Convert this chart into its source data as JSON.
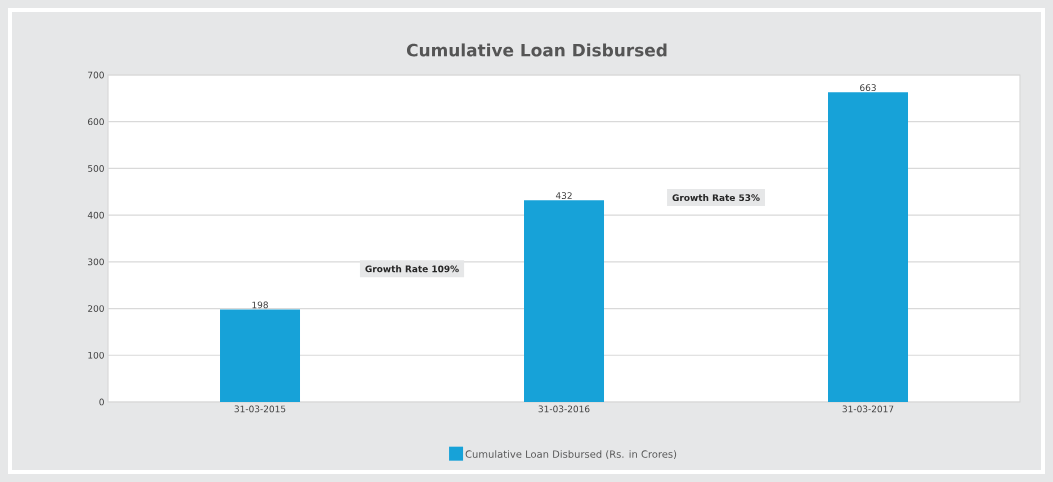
{
  "chart_data": {
    "type": "bar",
    "title": "Cumulative Loan Disbursed",
    "categories": [
      "31-03-2015",
      "31-03-2016",
      "31-03-2017"
    ],
    "series": [
      {
        "name": "Cumulative Loan Disbursed (Rs. in Crores)",
        "color": "#17a2d8",
        "values": [
          198,
          432,
          663
        ]
      }
    ],
    "ylim": [
      0,
      700
    ],
    "yticks": [
      0,
      100,
      200,
      300,
      400,
      500,
      600,
      700
    ],
    "grid": "y",
    "legend": "bottom",
    "data_labels": true,
    "annotations": [
      "Growth Rate 109%",
      "Growth Rate 53%"
    ]
  }
}
